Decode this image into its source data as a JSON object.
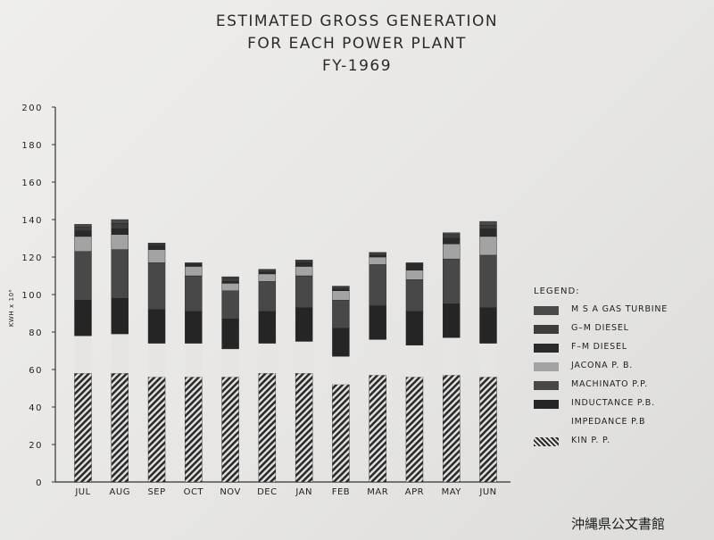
{
  "title_lines": [
    "ESTIMATED GROSS GENERATION",
    "FOR EACH POWER PLANT",
    "FY-1969"
  ],
  "legend_title": "LEGEND:",
  "archive_label": "沖縄県公文書館",
  "chart_data": {
    "type": "bar",
    "stacked": true,
    "title": "ESTIMATED GROSS GENERATION FOR EACH POWER PLANT FY-1969",
    "xlabel": "",
    "ylabel": "KWH x 10⁶",
    "ylim": [
      0,
      200
    ],
    "yticks": [
      "0",
      "20",
      "40",
      "60",
      "80",
      "100",
      "120",
      "140",
      "160",
      "180",
      "200"
    ],
    "categories": [
      "JUL",
      "AUG",
      "SEP",
      "OCT",
      "NOV",
      "DEC",
      "JAN",
      "FEB",
      "MAR",
      "APR",
      "MAY",
      "JUN"
    ],
    "legend_position": "right",
    "grid": false,
    "series": [
      {
        "name": "KIN P. P.",
        "color": "#2b2b2b",
        "pattern": "hatch",
        "values": [
          58,
          58,
          56,
          56,
          56,
          58,
          58,
          52,
          57,
          56,
          57,
          56
        ]
      },
      {
        "name": "IMPEDANCE P.B",
        "color": "#e6e5e3",
        "values": [
          20,
          21,
          18,
          18,
          15,
          16,
          17,
          15,
          19,
          17,
          20,
          18
        ]
      },
      {
        "name": "INDUCTANCE P.B.",
        "color": "#252525",
        "values": [
          19,
          19,
          18,
          17,
          16,
          17,
          18,
          15,
          18,
          18,
          18,
          19
        ]
      },
      {
        "name": "MACHINATO P.P.",
        "color": "#484848",
        "values": [
          26,
          26,
          25,
          19,
          15,
          16,
          17,
          15,
          22,
          17,
          24,
          28
        ]
      },
      {
        "name": "JACONA P. B.",
        "color": "#a3a3a3",
        "values": [
          8,
          8,
          7,
          5,
          4,
          4,
          5,
          5,
          4,
          5,
          8,
          10
        ]
      },
      {
        "name": "F–M DIESEL",
        "color": "#2a2a2a",
        "values": [
          3,
          3,
          2,
          1,
          1,
          1,
          2,
          1,
          1,
          3,
          3,
          4
        ]
      },
      {
        "name": "G–M DIESEL",
        "color": "#3d3d3d",
        "values": [
          2,
          3,
          1,
          0.5,
          2,
          1,
          1,
          1,
          1,
          0.5,
          2,
          2
        ]
      },
      {
        "name": "M S A  GAS TURBINE",
        "color": "#4a4a4a",
        "values": [
          1.5,
          2,
          0.5,
          0.5,
          0.5,
          0.5,
          0.5,
          0.5,
          0.5,
          0.5,
          1,
          2
        ]
      }
    ],
    "legend_order": [
      "M S A  GAS TURBINE",
      "G–M DIESEL",
      "F–M DIESEL",
      "JACONA P. B.",
      "MACHINATO P.P.",
      "INDUCTANCE P.B.",
      "IMPEDANCE P.B",
      "KIN P. P."
    ]
  }
}
